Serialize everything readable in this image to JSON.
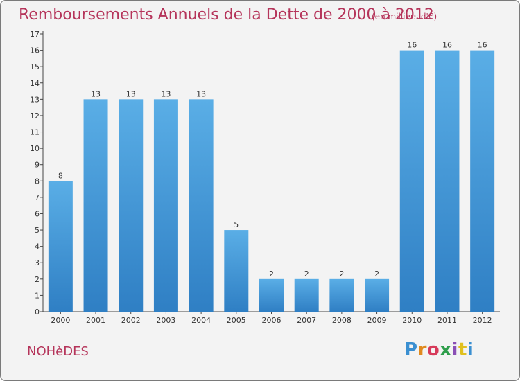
{
  "title": "Remboursements Annuels de la Dette de 2000 à 2012",
  "subtitle": "(en milliers d'€)",
  "commune": "NOHèDES",
  "logo_letters": [
    "P",
    "r",
    "o",
    "x",
    "i",
    "t",
    "i"
  ],
  "colors": {
    "title": "#b5345a",
    "bar": "#3d8fd6",
    "bar_light": "#5aaee6",
    "axis": "#333333"
  },
  "chart_data": {
    "type": "bar",
    "title": "Remboursements Annuels de la Dette de 2000 à 2012",
    "subtitle": "(en milliers d'€)",
    "categories": [
      "2000",
      "2001",
      "2002",
      "2003",
      "2004",
      "2005",
      "2006",
      "2007",
      "2008",
      "2009",
      "2010",
      "2011",
      "2012"
    ],
    "values": [
      8,
      13,
      13,
      13,
      13,
      5,
      2,
      2,
      2,
      2,
      16,
      16,
      16
    ],
    "data_labels": [
      "8",
      "13",
      "13",
      "13",
      "13",
      "5",
      "2",
      "2",
      "2",
      "2",
      "16",
      "16",
      "16"
    ],
    "y_ticks": [
      "0",
      "1",
      "2",
      "3",
      "4",
      "5",
      "6",
      "7",
      "8",
      "9",
      "10",
      "11",
      "12",
      "13",
      "14",
      "15",
      "16",
      "17"
    ],
    "ylim": [
      0,
      17
    ],
    "xlabel": "",
    "ylabel": "",
    "grid": false,
    "legend": "none"
  }
}
